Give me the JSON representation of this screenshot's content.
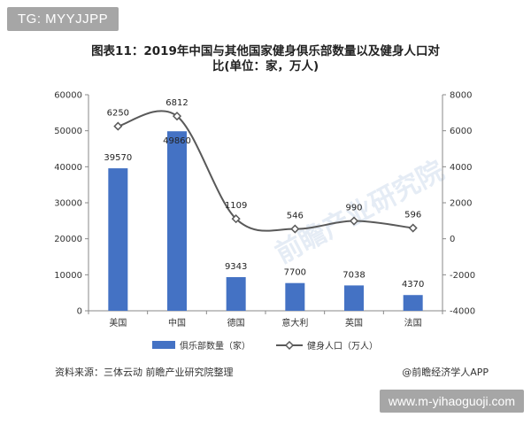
{
  "watermark_top": "TG: MYYJJPP",
  "watermark_bottom": "www.m-yihaoguoji.com",
  "background_watermark": "前瞻产业研究院",
  "title_line1": "图表11：2019年中国与其他国家健身俱乐部数量以及健身人口对",
  "title_line2": "比(单位：家，万人)",
  "source": "资料来源：三体云动 前瞻产业研究院整理",
  "brand": "@前瞻经济学人APP",
  "colors": {
    "bar": "#4472c4",
    "line": "#595959"
  },
  "chart_data": {
    "type": "bar",
    "categories": [
      "美国",
      "中国",
      "德国",
      "意大利",
      "英国",
      "法国"
    ],
    "series": [
      {
        "name": "俱乐部数量（家）",
        "type": "bar",
        "axis": "left",
        "values": [
          39570,
          49860,
          9343,
          7700,
          7038,
          4370
        ]
      },
      {
        "name": "健身人口（万人）",
        "type": "line",
        "axis": "right",
        "marker": "diamond",
        "values": [
          6250,
          6812,
          1109,
          546,
          990,
          596
        ]
      }
    ],
    "ylim_left": [
      0,
      60000
    ],
    "yticks_left": [
      "0",
      "10000",
      "20000",
      "30000",
      "40000",
      "50000",
      "60000"
    ],
    "ylim_right": [
      -4000,
      8000
    ],
    "yticks_right": [
      "-4000",
      "-2000",
      "0",
      "2000",
      "4000",
      "6000",
      "8000"
    ],
    "grid": false,
    "legend_position": "bottom"
  }
}
